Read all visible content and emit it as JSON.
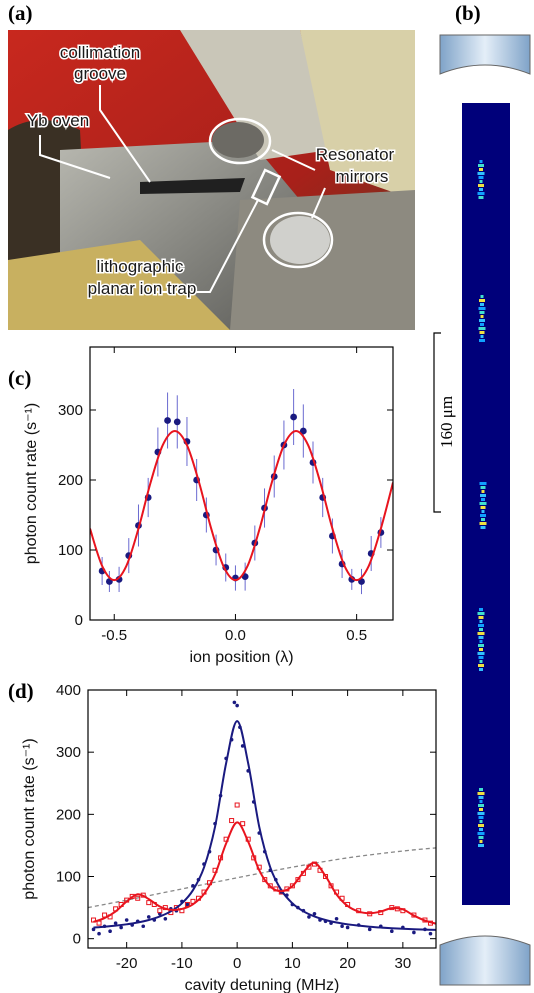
{
  "figure": {
    "labels": [
      "(a)",
      "(b)",
      "(c)",
      "(d)"
    ],
    "annotations": [
      {
        "lines": [
          "collimation",
          "groove"
        ]
      },
      {
        "lines": [
          "Yb oven"
        ]
      },
      {
        "lines": [
          "Resonator",
          "mirrors"
        ]
      },
      {
        "lines": [
          "lithographic",
          "planar ion trap"
        ]
      }
    ],
    "scale_bar": "160 μm"
  },
  "chart_data": [
    {
      "type": "scatter",
      "x_label": "ion position (λ)",
      "y_label": "photon count rate (s⁻¹)",
      "xlim": [
        -0.6,
        0.65
      ],
      "ylim": [
        0,
        390
      ],
      "xticks": [
        -0.5,
        {
          "value": 0,
          "label": "0.0"
        },
        0.5
      ],
      "yticks": [
        0,
        100,
        200,
        300
      ],
      "series": [
        {
          "kind": "points",
          "marker": "circle",
          "color": "#1a1a80",
          "x": [
            -0.55,
            -0.52,
            -0.48,
            -0.44,
            -0.4,
            -0.36,
            -0.32,
            -0.28,
            -0.24,
            -0.2,
            -0.16,
            -0.12,
            -0.08,
            -0.04,
            0,
            0.04,
            0.08,
            0.12,
            0.16,
            0.2,
            0.24,
            0.28,
            0.32,
            0.36,
            0.4,
            0.44,
            0.48,
            0.52,
            0.56,
            0.6
          ],
          "values": [
            70,
            55,
            58,
            92,
            135,
            175,
            240,
            285,
            283,
            255,
            200,
            150,
            100,
            75,
            60,
            62,
            110,
            160,
            205,
            250,
            290,
            270,
            225,
            175,
            120,
            80,
            58,
            55,
            95,
            125
          ],
          "errors": [
            20,
            15,
            18,
            25,
            30,
            28,
            35,
            40,
            38,
            35,
            30,
            25,
            22,
            20,
            18,
            20,
            25,
            28,
            30,
            35,
            40,
            38,
            30,
            28,
            25,
            20,
            15,
            18,
            25,
            22
          ]
        },
        {
          "kind": "line",
          "color": "#e8141e",
          "x": [
            -0.6,
            -0.55,
            -0.5,
            -0.45,
            -0.4,
            -0.35,
            -0.3,
            -0.25,
            -0.2,
            -0.15,
            -0.1,
            -0.05,
            0,
            0.05,
            0.1,
            0.15,
            0.2,
            0.25,
            0.3,
            0.35,
            0.4,
            0.45,
            0.5,
            0.55,
            0.6,
            0.65
          ],
          "values": [
            130.6,
            77.3,
            57,
            77.3,
            130.6,
            196.4,
            249.7,
            270,
            249.7,
            196.4,
            130.6,
            77.3,
            57,
            77.3,
            130.6,
            196.4,
            249.7,
            270,
            249.7,
            196.4,
            130.6,
            77.3,
            57,
            77.3,
            130.6,
            196.4
          ]
        }
      ]
    },
    {
      "type": "scatter",
      "x_label": "cavity detuning (MHz)",
      "y_label": "photon count rate (s⁻¹)",
      "xlim": [
        -27,
        36
      ],
      "ylim": [
        -15,
        400
      ],
      "xticks": [
        -20,
        -10,
        0,
        10,
        20,
        30
      ],
      "yticks": [
        0,
        100,
        200,
        300,
        400
      ],
      "series": [
        {
          "kind": "line",
          "dashed": true,
          "color": "#888888",
          "x": [
            -27,
            -20,
            -10,
            0,
            10,
            20,
            30,
            36
          ],
          "values": [
            50,
            62,
            80,
            98,
            115,
            130,
            141,
            146
          ]
        },
        {
          "kind": "points",
          "marker": "dot",
          "color": "#1a1a80",
          "x": [
            -26,
            -25,
            -24,
            -23,
            -22,
            -21,
            -20,
            -19,
            -18,
            -17,
            -16,
            -15,
            -14,
            -13,
            -12,
            -11,
            -10,
            -9,
            -8,
            -7,
            -6,
            -5,
            -4,
            -3,
            -2,
            -1,
            -0.5,
            0,
            0.5,
            1,
            2,
            3,
            4,
            5,
            6,
            7,
            8,
            9,
            10,
            11,
            12,
            13,
            14,
            15,
            16,
            17,
            18,
            19,
            20,
            22,
            24,
            26,
            28,
            30,
            32,
            34,
            35
          ],
          "values": [
            15,
            8,
            20,
            12,
            25,
            18,
            30,
            22,
            28,
            20,
            35,
            30,
            40,
            32,
            48,
            45,
            60,
            55,
            85,
            95,
            120,
            140,
            185,
            230,
            290,
            320,
            380,
            375,
            340,
            310,
            270,
            220,
            170,
            140,
            110,
            95,
            75,
            70,
            55,
            50,
            45,
            35,
            40,
            30,
            28,
            25,
            32,
            20,
            18,
            22,
            15,
            20,
            12,
            18,
            10,
            15,
            8
          ]
        },
        {
          "kind": "points",
          "marker": "square",
          "color": "#e8141e",
          "x": [
            -26,
            -25,
            -24,
            -23,
            -22,
            -21,
            -20,
            -19,
            -18,
            -17,
            -16,
            -15,
            -14,
            -13,
            -12,
            -11,
            -10,
            -9,
            -8,
            -7,
            -6,
            -5,
            -4,
            -3,
            -2,
            -1,
            0,
            1,
            2,
            3,
            4,
            5,
            6,
            7,
            8,
            9,
            10,
            11,
            12,
            13,
            14,
            15,
            16,
            17,
            18,
            19,
            20,
            22,
            24,
            26,
            28,
            29,
            30,
            32,
            34,
            35
          ],
          "values": [
            30,
            25,
            38,
            35,
            48,
            55,
            62,
            68,
            65,
            70,
            58,
            55,
            45,
            50,
            42,
            50,
            45,
            55,
            60,
            65,
            75,
            90,
            110,
            130,
            160,
            190,
            215,
            185,
            160,
            130,
            115,
            95,
            85,
            80,
            75,
            80,
            85,
            95,
            105,
            115,
            120,
            110,
            100,
            85,
            75,
            65,
            55,
            45,
            40,
            42,
            50,
            48,
            45,
            38,
            30,
            25
          ]
        },
        {
          "kind": "line",
          "color": "#1a1a80",
          "x": [
            -26,
            -24,
            -22,
            -20,
            -18,
            -16,
            -14,
            -12,
            -10,
            -8,
            -6,
            -4,
            -2,
            0,
            2,
            4,
            6,
            8,
            10,
            12,
            14,
            16,
            18,
            20,
            22,
            24,
            26,
            28,
            30,
            32,
            34,
            36
          ],
          "values": [
            17.9,
            19.2,
            20.9,
            23.1,
            26,
            30,
            35.7,
            44,
            56.9,
            78,
            114.6,
            180,
            282,
            350,
            282,
            180,
            114.6,
            78,
            56.9,
            44,
            35.7,
            30,
            26,
            23.1,
            20.9,
            19.2,
            17.9,
            16.8,
            15.9,
            15.2,
            14.6,
            14.1
          ]
        },
        {
          "kind": "line",
          "color": "#e8141e",
          "x": [
            -26,
            -24,
            -22,
            -20,
            -18,
            -16,
            -14,
            -12,
            -10,
            -8,
            -6,
            -4,
            -2,
            0,
            2,
            4,
            6,
            8,
            10,
            12,
            14,
            16,
            18,
            20,
            22,
            24,
            26,
            28,
            30,
            32,
            34,
            36
          ],
          "values": [
            27,
            33.2,
            43.8,
            59.9,
            71.5,
            63.7,
            51.7,
            46.5,
            47.8,
            55.3,
            72,
            103.4,
            153.1,
            187,
            156,
            110,
            83.9,
            76.3,
            84.5,
            106.8,
            122,
            100.7,
            71.1,
            52.6,
            43.6,
            40.9,
            43.6,
            49.2,
            47.2,
            37.2,
            29.2,
            24.1
          ]
        }
      ]
    }
  ]
}
